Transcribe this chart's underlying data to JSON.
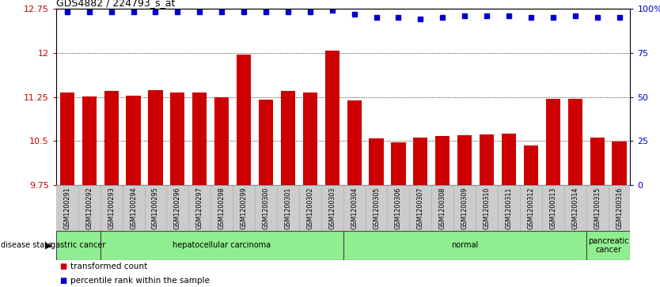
{
  "title": "GDS4882 / 224793_s_at",
  "samples": [
    "GSM1200291",
    "GSM1200292",
    "GSM1200293",
    "GSM1200294",
    "GSM1200295",
    "GSM1200296",
    "GSM1200297",
    "GSM1200298",
    "GSM1200299",
    "GSM1200300",
    "GSM1200301",
    "GSM1200302",
    "GSM1200303",
    "GSM1200304",
    "GSM1200305",
    "GSM1200306",
    "GSM1200307",
    "GSM1200308",
    "GSM1200309",
    "GSM1200310",
    "GSM1200311",
    "GSM1200312",
    "GSM1200313",
    "GSM1200314",
    "GSM1200315",
    "GSM1200316"
  ],
  "bar_values": [
    11.32,
    11.26,
    11.35,
    11.27,
    11.37,
    11.32,
    11.33,
    11.25,
    11.97,
    11.2,
    11.35,
    11.32,
    12.04,
    11.19,
    10.55,
    10.48,
    10.56,
    10.58,
    10.6,
    10.61,
    10.62,
    10.43,
    11.22,
    11.21,
    10.56,
    10.49
  ],
  "percentile_values": [
    98,
    98,
    98,
    98,
    98,
    98,
    98,
    98,
    98,
    98,
    98,
    98,
    99,
    97,
    95,
    95,
    94,
    95,
    96,
    96,
    96,
    95,
    95,
    96,
    95,
    95
  ],
  "disease_groups": [
    {
      "label": "gastric cancer",
      "start": 0,
      "end": 2
    },
    {
      "label": "hepatocellular carcinoma",
      "start": 2,
      "end": 13
    },
    {
      "label": "normal",
      "start": 13,
      "end": 24
    },
    {
      "label": "pancreatic\ncancer",
      "start": 24,
      "end": 26
    }
  ],
  "ylim_left": [
    9.75,
    12.75
  ],
  "yticks_left": [
    9.75,
    10.5,
    11.25,
    12.0,
    12.75
  ],
  "ytick_labels_left": [
    "9.75",
    "10.5",
    "11.25",
    "12",
    "12.75"
  ],
  "ylim_right": [
    0,
    100
  ],
  "yticks_right": [
    0,
    25,
    50,
    75,
    100
  ],
  "ytick_labels_right": [
    "0",
    "25",
    "50",
    "75",
    "100%"
  ],
  "bar_color": "#cc0000",
  "dot_color": "#0000cc",
  "background_color": "#ffffff",
  "xtick_bg_color": "#cccccc",
  "xtick_border_color": "#aaaaaa",
  "group_fill_color": "#90ee90",
  "group_border_color": "#444444",
  "legend_items": [
    {
      "label": "transformed count",
      "color": "#cc0000"
    },
    {
      "label": "percentile rank within the sample",
      "color": "#0000cc"
    }
  ]
}
